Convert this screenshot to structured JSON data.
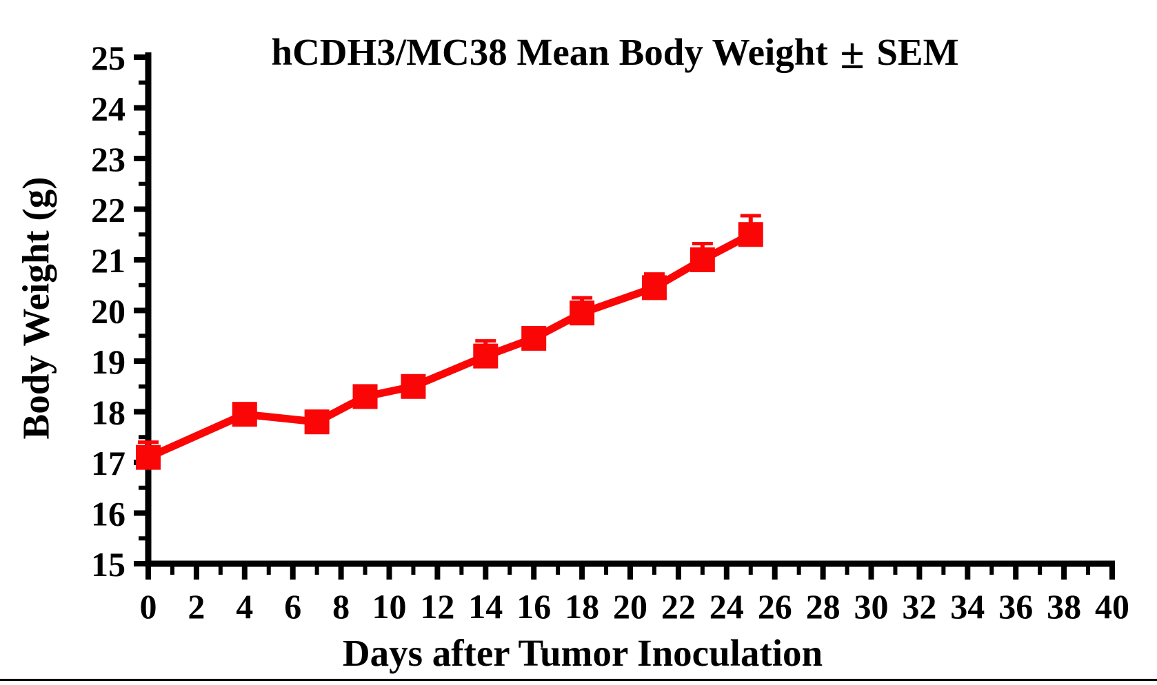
{
  "page": {
    "background": "#ffffff",
    "axis_color": "#000000"
  },
  "chart_data": {
    "type": "line",
    "title": "hCDH3/MC38 Mean Body Weight ± SEM",
    "title_parts": {
      "prefix": "hCDH3/MC38 Mean Body Weight",
      "pm": "±",
      "suffix": "SEM"
    },
    "xlabel": "Days after Tumor Inoculation",
    "ylabel": "Body Weight (g)",
    "grid": false,
    "legend": "none",
    "axis_color": "#000000",
    "x_axis": {
      "label": "Days after Tumor Inoculation",
      "range": [
        0,
        40
      ],
      "major_tick_step": 2,
      "minor_tick_step": 1,
      "tick_labels": [
        "0",
        "2",
        "4",
        "6",
        "8",
        "10",
        "12",
        "14",
        "16",
        "18",
        "20",
        "22",
        "24",
        "26",
        "28",
        "30",
        "32",
        "34",
        "36",
        "38",
        "40"
      ]
    },
    "y_axis": {
      "label": "Body Weight (g)",
      "range": [
        15,
        25
      ],
      "major_tick_step": 1,
      "minor_tick_step": 0.5,
      "tick_labels": [
        "15",
        "16",
        "17",
        "18",
        "19",
        "20",
        "21",
        "22",
        "23",
        "24",
        "25"
      ]
    },
    "series": [
      {
        "name": "hCDH3/MC38 mean body weight",
        "color": "#FA0606",
        "marker": "square",
        "error_bars": "upper",
        "x": [
          0,
          4,
          7,
          9,
          11,
          14,
          16,
          18,
          21,
          23,
          25
        ],
        "y": [
          17.1,
          17.95,
          17.8,
          18.3,
          18.5,
          19.1,
          19.45,
          19.95,
          20.45,
          21.0,
          21.5
        ],
        "sem": [
          0.3,
          0.12,
          0.1,
          0.12,
          0.1,
          0.3,
          0.1,
          0.3,
          0.27,
          0.32,
          0.37
        ]
      }
    ]
  }
}
